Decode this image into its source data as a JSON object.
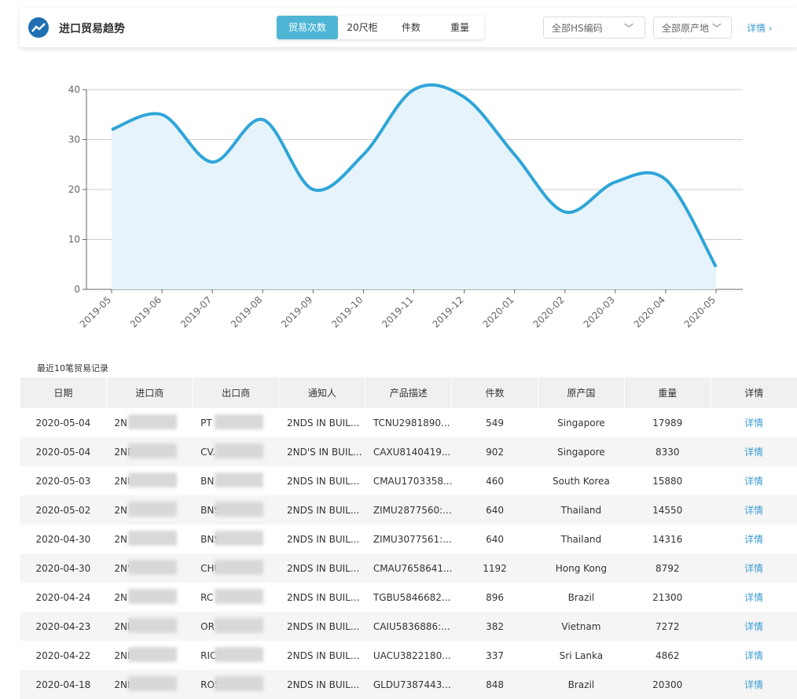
{
  "header": {
    "title": "进口贸易趋势",
    "tabs": [
      "贸易次数",
      "20尺柜",
      "件数",
      "重量"
    ],
    "active_tab": 0,
    "filters": [
      "全部HS编码",
      "全部原产地"
    ],
    "link": "详情"
  },
  "chart_data": {
    "type": "area",
    "categories": [
      "2019-05",
      "2019-06",
      "2019-07",
      "2019-08",
      "2019-09",
      "2019-10",
      "2019-11",
      "2019-12",
      "2020-01",
      "2020-02",
      "2020-03",
      "2020-04",
      "2020-05"
    ],
    "series": [
      {
        "name": "贸易次数",
        "color": "#2fa5d8",
        "values": [
          32,
          35,
          25.5,
          34,
          20,
          27,
          40,
          38.5,
          27,
          15.5,
          21.5,
          22,
          4.5
        ]
      }
    ],
    "ylim": [
      0,
      40
    ],
    "yticks": [
      0,
      10,
      20,
      30,
      40
    ],
    "grid": true,
    "area_color": "#e6f3fb"
  },
  "table": {
    "caption": "最近10笔贸易记录",
    "columns": [
      "日期",
      "进口商",
      "出口商",
      "通知人",
      "产品描述",
      "件数",
      "原产国",
      "重量",
      "详情"
    ],
    "rows": [
      [
        "2020-05-04",
        "2N",
        "PT",
        "2NDS IN BUIL...",
        "TCNU2981890...",
        549,
        "Singapore",
        17989,
        "详情"
      ],
      [
        "2020-05-04",
        "2ND'",
        "CV.",
        "2ND'S IN BUIL...",
        "CAXU8140419...",
        902,
        "Singapore",
        8330,
        "详情"
      ],
      [
        "2020-05-03",
        "2NI",
        "BN",
        "2NDS IN BUIL...",
        "CMAU1703358...",
        460,
        "South Korea",
        15880,
        "详情"
      ],
      [
        "2020-05-02",
        "2N",
        "BNS",
        "2NDS IN BUIL...",
        "ZIMU2877560:...",
        640,
        "Thailand",
        14550,
        "详情"
      ],
      [
        "2020-04-30",
        "2N",
        "BNS",
        "2NDS IN BUIL...",
        "ZIMU3077561:...",
        640,
        "Thailand",
        14316,
        "详情"
      ],
      [
        "2020-04-30",
        "2N'",
        "CHU",
        "2NDS IN BUIL...",
        "CMAU7658641...",
        1192,
        "Hong Kong",
        8792,
        "详情"
      ],
      [
        "2020-04-24",
        "2N",
        "RC",
        "2NDS IN BUIL...",
        "TGBU5846682...",
        896,
        "Brazil",
        21300,
        "详情"
      ],
      [
        "2020-04-23",
        "2NI",
        "OR",
        "2NDS IN BUIL...",
        "CAIU5836886:...",
        382,
        "Vietnam",
        7272,
        "详情"
      ],
      [
        "2020-04-22",
        "2NI",
        "RICH",
        "2NDS IN BUIL...",
        "UACU3822180...",
        337,
        "Sri Lanka",
        4862,
        "详情"
      ],
      [
        "2020-04-18",
        "2NI",
        "ROS",
        "2NDS IN BUIL...",
        "GLDU7387443...",
        848,
        "Brazil",
        20300,
        "详情"
      ]
    ]
  }
}
